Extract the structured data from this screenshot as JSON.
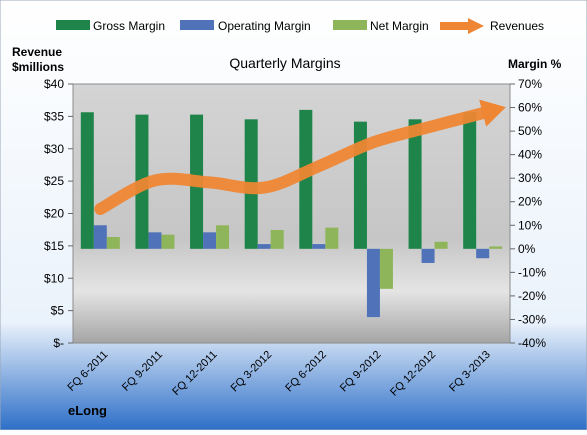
{
  "chart_data": {
    "type": "bar",
    "title": "Quarterly Margins",
    "company_label": "eLong",
    "left_axis_title": [
      "Revenue",
      "$millions"
    ],
    "right_axis_title": "Margin %",
    "categories": [
      "FQ 6-2011",
      "FQ 9-2011",
      "FQ 12-2011",
      "FQ 3-2012",
      "FQ 6-2012",
      "FQ 9-2012",
      "FQ 12-2012",
      "FQ 3-2013"
    ],
    "left_axis": {
      "min": 0,
      "max": 40,
      "step": 5,
      "tick_labels": [
        "$-",
        "$5",
        "$10",
        "$15",
        "$20",
        "$25",
        "$30",
        "$35",
        "$40"
      ]
    },
    "right_axis": {
      "min": -40,
      "max": 70,
      "step": 10,
      "tick_labels": [
        "-40%",
        "-30%",
        "-20%",
        "-10%",
        "0%",
        "10%",
        "20%",
        "30%",
        "40%",
        "50%",
        "60%",
        "70%"
      ]
    },
    "series": [
      {
        "name": "Gross Margin",
        "axis": "right",
        "kind": "bar",
        "color": "#1e8449",
        "values": [
          58,
          57,
          57,
          55,
          59,
          54,
          55,
          58
        ]
      },
      {
        "name": "Operating Margin",
        "axis": "right",
        "kind": "bar",
        "color": "#4f72b8",
        "values": [
          10,
          7,
          7,
          2,
          2,
          -29,
          -6,
          -4
        ]
      },
      {
        "name": "Net Margin",
        "axis": "right",
        "kind": "bar",
        "color": "#8fb55a",
        "values": [
          5,
          6,
          10,
          8,
          9,
          -17,
          3,
          1
        ]
      },
      {
        "name": "Revenues",
        "axis": "left",
        "kind": "line",
        "color": "#ee8633",
        "values": [
          20.7,
          25.1,
          24.8,
          24.0,
          27.3,
          31.0,
          33.3,
          35.5
        ]
      }
    ],
    "legend_position": "top",
    "grid": false
  }
}
